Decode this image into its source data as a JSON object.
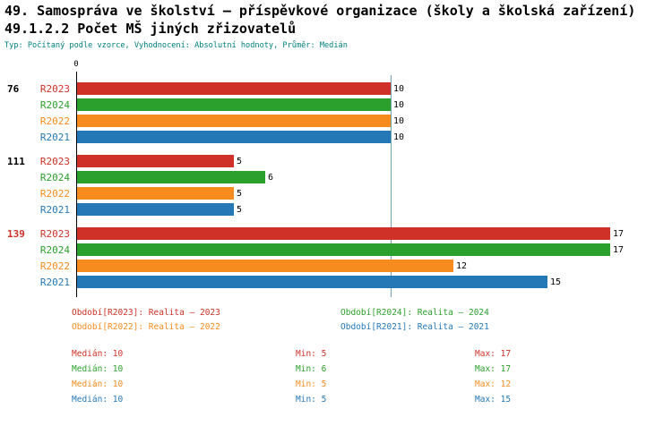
{
  "page": {
    "title_line1": "49. Samospráva ve školství – příspěvkové organizace (školy a školská zařízení)",
    "title_line2": "49.1.2.2 Počet MŠ jiných zřizovatelů",
    "meta_line": "Typ: Počítaný podle vzorce, Vyhodnocení: Absolutní hodnoty, Průměr: Medián"
  },
  "colors": {
    "title": "#000000",
    "meta": "#008080",
    "axis": "#000000",
    "median_line": "#6fa0b5",
    "value_label": "#000000"
  },
  "chart_data": {
    "type": "bar",
    "orientation": "horizontal",
    "title": "49.1.2.2 Počet MŠ jiných zřizovatelů",
    "axis_zero_label": "0",
    "xlim": [
      0,
      17
    ],
    "median_reference_value": 10,
    "grid": false,
    "series": [
      {
        "name": "R2023",
        "label": "Realita – 2023",
        "color": "#cf3027"
      },
      {
        "name": "R2024",
        "label": "Realita – 2024",
        "color": "#2ca02c"
      },
      {
        "name": "R2022",
        "label": "Realita – 2022",
        "color": "#f68b1e"
      },
      {
        "name": "R2021",
        "label": "Realita – 2021",
        "color": "#2478b5"
      }
    ],
    "groups": [
      {
        "label": "76",
        "label_color": "#000000",
        "values": [
          10,
          10,
          10,
          10
        ]
      },
      {
        "label": "111",
        "label_color": "#000000",
        "values": [
          5,
          6,
          5,
          5
        ]
      },
      {
        "label": "139",
        "label_color": "#cf3027",
        "values": [
          17,
          17,
          12,
          15
        ]
      }
    ]
  },
  "legend": {
    "items": [
      {
        "series": "R2023",
        "text": "Období[R2023]: Realita – 2023"
      },
      {
        "series": "R2024",
        "text": "Období[R2024]: Realita – 2024"
      },
      {
        "series": "R2022",
        "text": "Období[R2022]: Realita – 2022"
      },
      {
        "series": "R2021",
        "text": "Období[R2021]: Realita – 2021"
      }
    ]
  },
  "stats": {
    "rows": [
      {
        "series": "R2023",
        "median": "Medián: 10",
        "min": "Min: 5",
        "max": "Max: 17"
      },
      {
        "series": "R2024",
        "median": "Medián: 10",
        "min": "Min: 6",
        "max": "Max: 17"
      },
      {
        "series": "R2022",
        "median": "Medián: 10",
        "min": "Min: 5",
        "max": "Max: 12"
      },
      {
        "series": "R2021",
        "median": "Medián: 10",
        "min": "Min: 5",
        "max": "Max: 15"
      }
    ]
  }
}
